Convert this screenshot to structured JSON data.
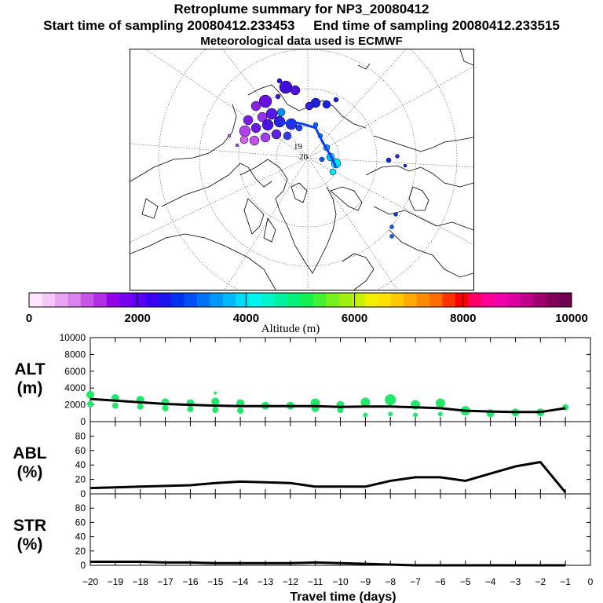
{
  "header": {
    "title": "Retroplume summary for NP3_20080412",
    "start_label": "Start time of sampling 20080412.233453",
    "end_label": "End time of sampling 20080412.233515",
    "met_label": "Meteorological data used is ECMWF"
  },
  "map": {
    "day_labels": [
      "19",
      "20"
    ],
    "day_label_values": [
      19,
      20
    ]
  },
  "colorbar": {
    "title": "Altitude (m)",
    "min": 0,
    "max": 10000,
    "tick_values": [
      0,
      2000,
      4000,
      6000,
      8000,
      10000
    ],
    "tick_labels": [
      "0",
      "2000",
      "4000",
      "6000",
      "8000",
      "10000"
    ],
    "colors": [
      "#ffe6ff",
      "#f5c8fa",
      "#eaa5f4",
      "#dc82ee",
      "#c855e8",
      "#b22ee6",
      "#9400e6",
      "#7800f0",
      "#5a00f5",
      "#3c00f5",
      "#1e14f0",
      "#0032f0",
      "#0050f5",
      "#0073f5",
      "#0096fa",
      "#00b9fa",
      "#00dcfa",
      "#00f5f0",
      "#00f5c8",
      "#00f0a0",
      "#00f078",
      "#14f050",
      "#46f032",
      "#78f01e",
      "#a0f014",
      "#c8f00a",
      "#f0f000",
      "#ffe100",
      "#ffc800",
      "#ffaa00",
      "#ff8c00",
      "#ff6e00",
      "#ff3200",
      "#ff0000",
      "#ff0064",
      "#ff0096",
      "#f000aa",
      "#dc00a0",
      "#be008c",
      "#a0006e",
      "#82005a",
      "#6e0050"
    ]
  },
  "chart_data": [
    {
      "type": "line",
      "name": "ALT",
      "ylabel": "ALT",
      "yunit": "(m)",
      "xlabel": "Travel time (days)",
      "xlim": [
        -20,
        0
      ],
      "ylim": [
        0,
        10000
      ],
      "yticks": [
        0,
        2000,
        4000,
        6000,
        8000,
        10000
      ],
      "ytick_labels": [
        "0",
        "2000",
        "4000",
        "6000",
        "8000",
        "10000"
      ],
      "series": [
        {
          "name": "mean altitude",
          "x": [
            -20,
            -19,
            -18,
            -17,
            -16,
            -15,
            -14,
            -13,
            -12,
            -11,
            -10,
            -9,
            -8,
            -7,
            -6,
            -5,
            -4,
            -3,
            -2,
            -1
          ],
          "values": [
            2700,
            2500,
            2300,
            2100,
            2000,
            1900,
            1850,
            1850,
            1850,
            1850,
            1750,
            1800,
            1800,
            1700,
            1600,
            1300,
            1200,
            1150,
            1150,
            1600
          ]
        }
      ],
      "clusters": [
        {
          "x": [
            -20,
            -20,
            -19,
            -19,
            -18,
            -18,
            -17,
            -17,
            -16,
            -16,
            -15,
            -15,
            -15,
            -14,
            -14,
            -13,
            -12,
            -11,
            -11,
            -10,
            -10,
            -9,
            -9,
            -8,
            -8,
            -7,
            -7,
            -6,
            -6,
            -5,
            -4,
            -3,
            -2,
            -1
          ],
          "y": [
            3200,
            2100,
            2800,
            1900,
            2600,
            1800,
            2300,
            1600,
            2200,
            1500,
            2400,
            1400,
            3400,
            2200,
            1300,
            1900,
            1900,
            2200,
            1600,
            2000,
            1400,
            2300,
            800,
            2600,
            900,
            2000,
            800,
            2200,
            900,
            1300,
            1000,
            1100,
            1100,
            1700
          ],
          "size": [
            4,
            3,
            4,
            3,
            4,
            3,
            4,
            3,
            4,
            3,
            4,
            3,
            1,
            4,
            3,
            4,
            4,
            5,
            4,
            4,
            3,
            5,
            2,
            6,
            2,
            5,
            2,
            5,
            2,
            5,
            4,
            4,
            4,
            3
          ]
        }
      ]
    },
    {
      "type": "line",
      "name": "ABL",
      "ylabel": "ABL",
      "yunit": "(%)",
      "xlim": [
        -20,
        0
      ],
      "ylim": [
        0,
        100
      ],
      "yticks": [
        0,
        20,
        40,
        60,
        80
      ],
      "ytick_labels": [
        "0",
        "20",
        "40",
        "60",
        "80"
      ],
      "series": [
        {
          "name": "fraction in ABL",
          "x": [
            -20,
            -19,
            -18,
            -17,
            -16,
            -15,
            -14,
            -13,
            -12,
            -11,
            -10,
            -9,
            -8,
            -7,
            -6,
            -5,
            -4,
            -3,
            -2,
            -1
          ],
          "values": [
            8,
            9,
            10,
            11,
            12,
            15,
            17,
            16,
            15,
            10,
            10,
            10,
            18,
            23,
            23,
            18,
            28,
            38,
            44,
            2
          ]
        }
      ]
    },
    {
      "type": "line",
      "name": "STR",
      "ylabel": "STR",
      "yunit": "(%)",
      "xlim": [
        -20,
        0
      ],
      "ylim": [
        0,
        100
      ],
      "yticks": [
        0,
        20,
        40,
        60,
        80
      ],
      "ytick_labels": [
        "0",
        "20",
        "40",
        "60",
        "80"
      ],
      "xticks": [
        -20,
        -19,
        -18,
        -17,
        -16,
        -15,
        -14,
        -13,
        -12,
        -11,
        -10,
        -9,
        -8,
        -7,
        -6,
        -5,
        -4,
        -3,
        -2,
        -1,
        0
      ],
      "xtick_labels": [
        "−20",
        "−19",
        "−18",
        "−17",
        "−16",
        "−15",
        "−14",
        "−13",
        "−12",
        "−11",
        "−10",
        "−9",
        "−8",
        "−7",
        "−6",
        "−5",
        "−4",
        "−3",
        "−2",
        "−1",
        "0"
      ],
      "series": [
        {
          "name": "fraction in stratosphere",
          "x": [
            -20,
            -19,
            -18,
            -17,
            -16,
            -15,
            -14,
            -13,
            -12,
            -11,
            -10,
            -9,
            -8,
            -7,
            -6,
            -5,
            -4,
            -3,
            -2,
            -1
          ],
          "values": [
            5,
            5,
            5,
            4,
            4,
            3,
            3,
            3,
            3,
            4,
            3,
            2,
            1,
            0,
            0,
            0,
            0,
            0,
            0,
            0
          ]
        }
      ]
    }
  ]
}
